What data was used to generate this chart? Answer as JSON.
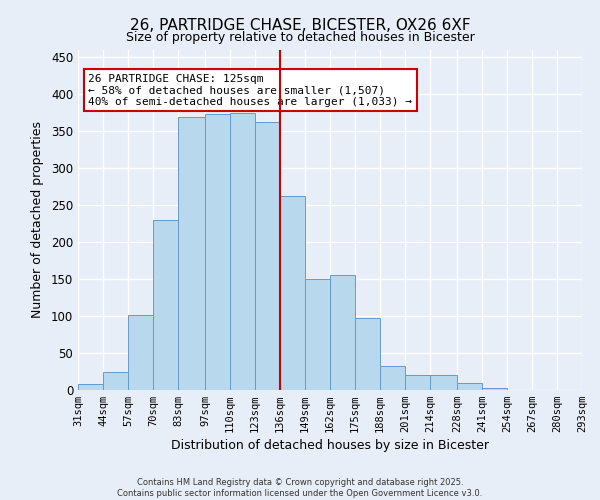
{
  "title": "26, PARTRIDGE CHASE, BICESTER, OX26 6XF",
  "subtitle": "Size of property relative to detached houses in Bicester",
  "xlabel": "Distribution of detached houses by size in Bicester",
  "ylabel": "Number of detached properties",
  "bar_color": "#b8d8ee",
  "bar_edge_color": "#6699cc",
  "background_color": "#e8eef8",
  "bins": [
    31,
    44,
    57,
    70,
    83,
    97,
    110,
    123,
    136,
    149,
    162,
    175,
    188,
    201,
    214,
    228,
    241,
    254,
    267,
    280,
    293
  ],
  "counts": [
    8,
    25,
    102,
    230,
    370,
    374,
    375,
    362,
    263,
    150,
    155,
    97,
    33,
    20,
    20,
    10,
    3,
    0,
    0,
    0
  ],
  "tick_labels": [
    "31sqm",
    "44sqm",
    "57sqm",
    "70sqm",
    "83sqm",
    "97sqm",
    "110sqm",
    "123sqm",
    "136sqm",
    "149sqm",
    "162sqm",
    "175sqm",
    "188sqm",
    "201sqm",
    "214sqm",
    "228sqm",
    "241sqm",
    "254sqm",
    "267sqm",
    "280sqm",
    "293sqm"
  ],
  "vline_color": "#cc0000",
  "annotation_title": "26 PARTRIDGE CHASE: 125sqm",
  "annotation_line1": "← 58% of detached houses are smaller (1,507)",
  "annotation_line2": "40% of semi-detached houses are larger (1,033) →",
  "annotation_box_color": "#ffffff",
  "annotation_box_edge": "#cc0000",
  "footer_line1": "Contains HM Land Registry data © Crown copyright and database right 2025.",
  "footer_line2": "Contains public sector information licensed under the Open Government Licence v3.0.",
  "ylim": [
    0,
    460
  ],
  "yticks": [
    0,
    50,
    100,
    150,
    200,
    250,
    300,
    350,
    400,
    450
  ]
}
